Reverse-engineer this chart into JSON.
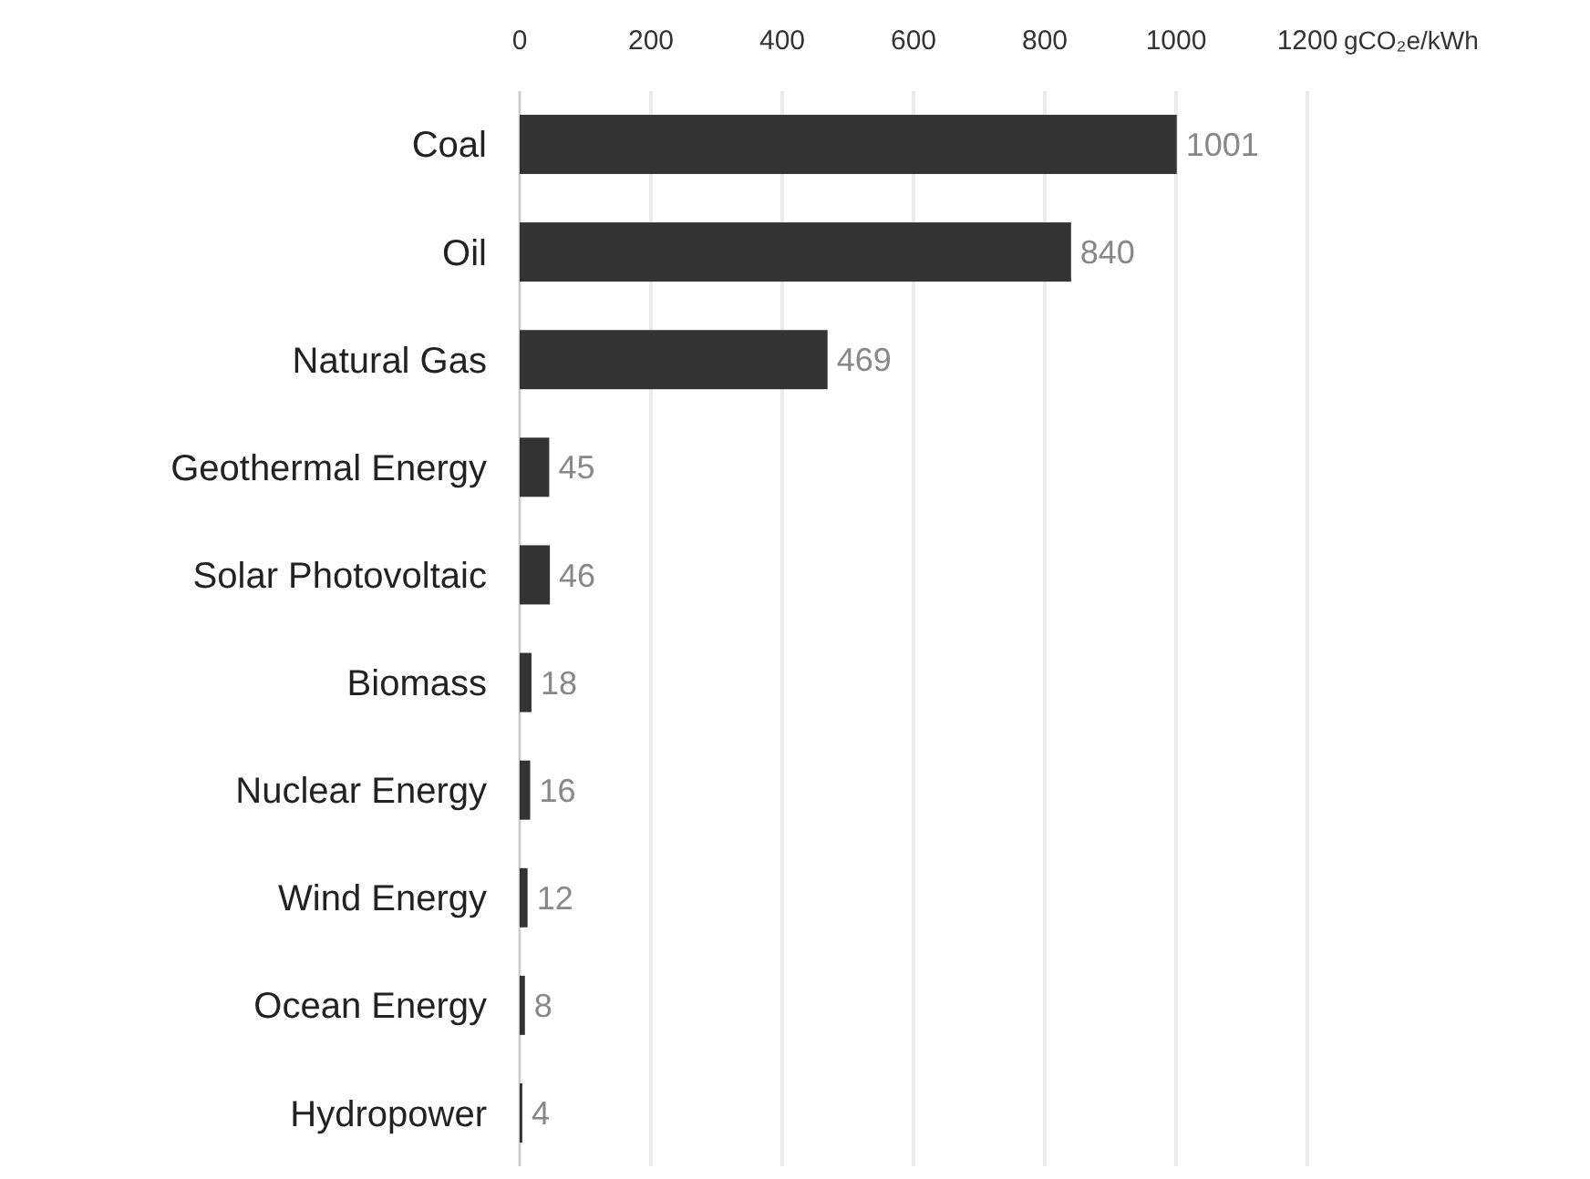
{
  "chart_data": {
    "type": "bar",
    "orientation": "horizontal",
    "categories": [
      "Coal",
      "Oil",
      "Natural Gas",
      "Geothermal Energy",
      "Solar Photovoltaic",
      "Biomass",
      "Nuclear Energy",
      "Wind Energy",
      "Ocean Energy",
      "Hydropower"
    ],
    "values": [
      1001,
      840,
      469,
      45,
      46,
      18,
      16,
      12,
      8,
      4
    ],
    "color": "#333333",
    "xlabel": "gCO₂e/kWh",
    "xlim": [
      0,
      1200
    ],
    "xticks": [
      0,
      200,
      400,
      600,
      800,
      1000,
      1200
    ],
    "grid": "x",
    "data_labels": true
  }
}
